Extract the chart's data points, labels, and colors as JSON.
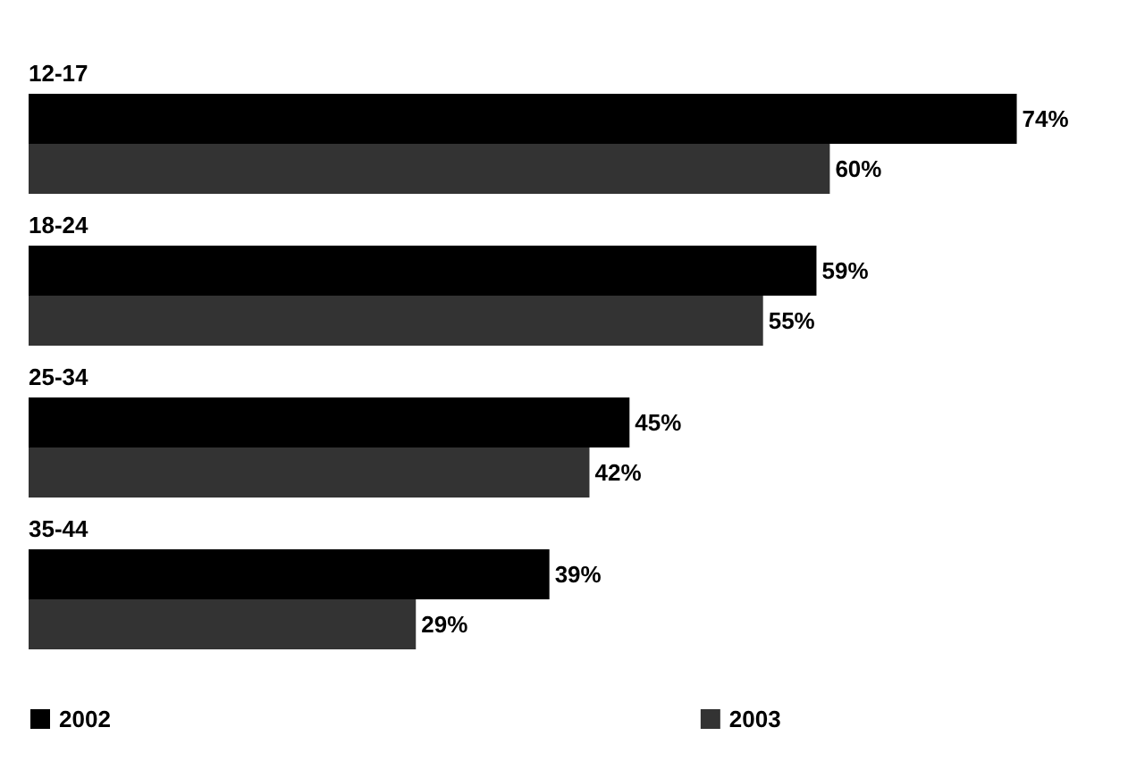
{
  "chart_data": {
    "type": "bar",
    "orientation": "horizontal",
    "categories": [
      "12-17",
      "18-24",
      "25-34",
      "35-44"
    ],
    "series": [
      {
        "name": "2002",
        "color": "#000000",
        "values": [
          74,
          59,
          45,
          39
        ],
        "value_labels": [
          "74%",
          "59%",
          "45%",
          "39%"
        ]
      },
      {
        "name": "2003",
        "color": "#333333",
        "values": [
          60,
          55,
          42,
          29
        ],
        "value_labels": [
          "60%",
          "55%",
          "42%",
          "29%"
        ]
      }
    ],
    "legend": "bottom"
  }
}
